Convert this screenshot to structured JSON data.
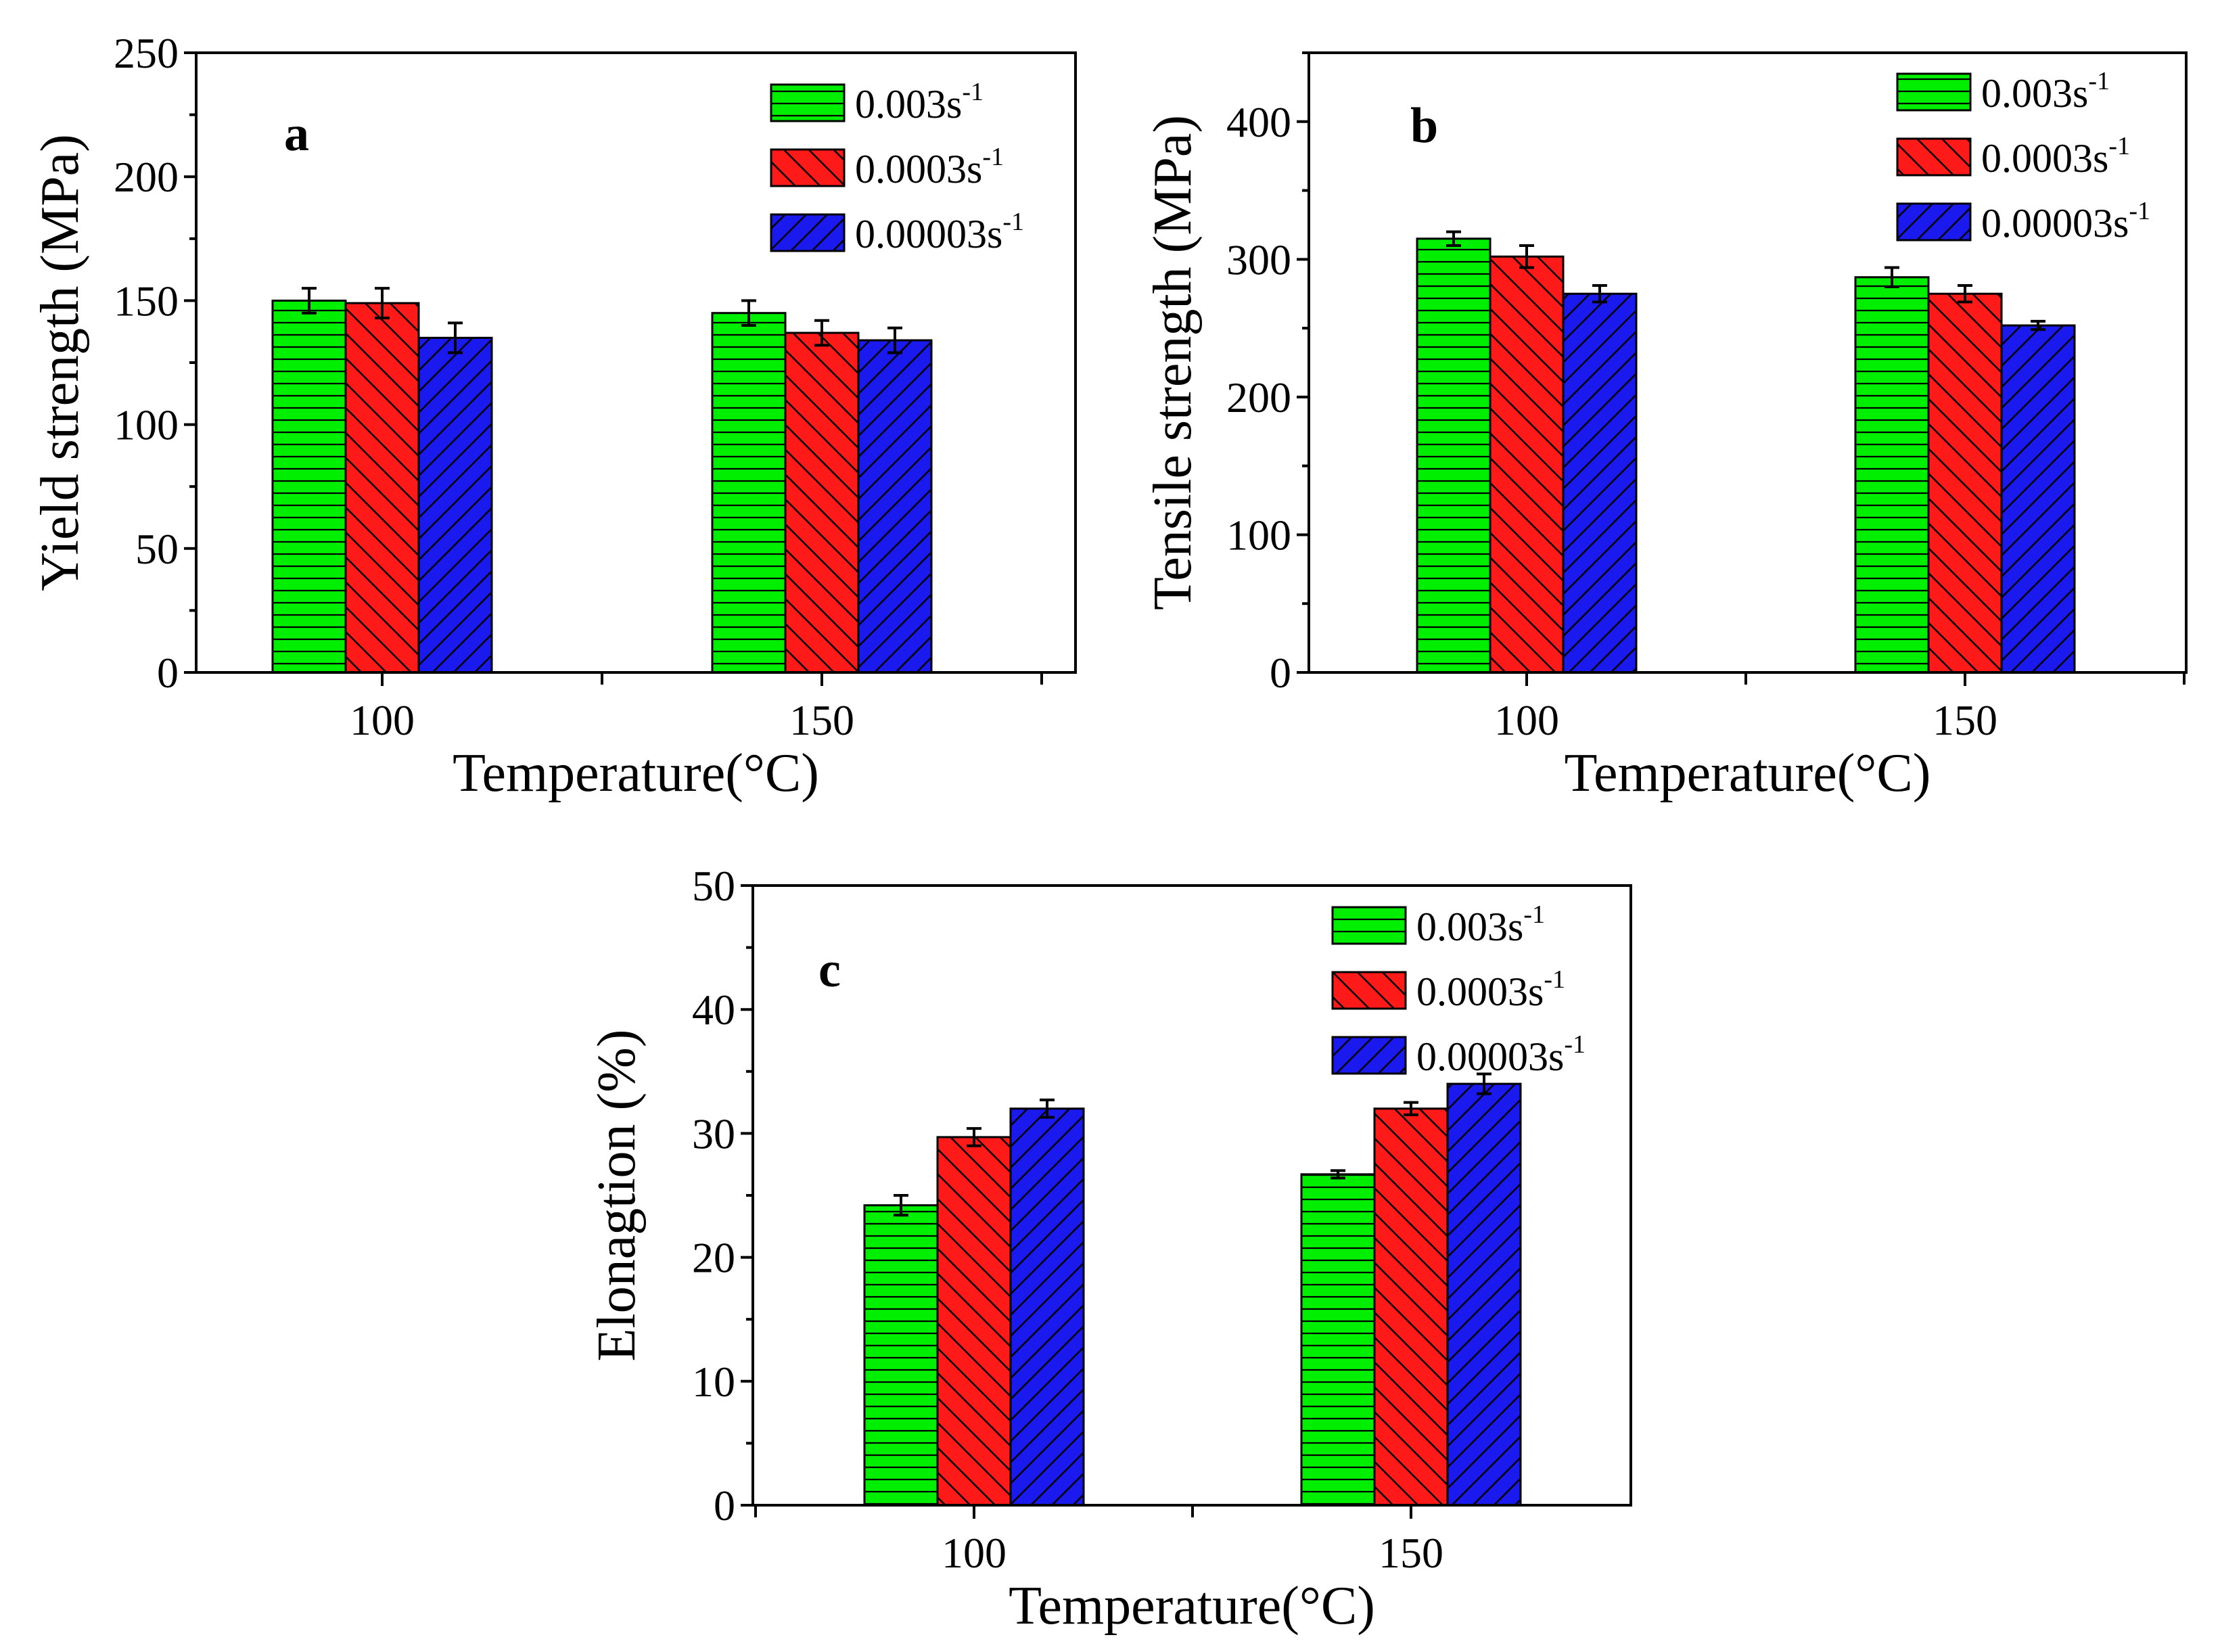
{
  "colors": {
    "series": [
      "#00ee00",
      "#ff1a1a",
      "#1a1aee"
    ],
    "hatch": "#000000",
    "axis": "#000000",
    "background": "#ffffff"
  },
  "chart_data": [
    {
      "type": "bar",
      "panel_label": "a",
      "xlabel": "Temperature(°C)",
      "ylabel": "Yield strength (MPa)",
      "categories": [
        "100",
        "150"
      ],
      "ylim": [
        0,
        250
      ],
      "yticks": [
        0,
        50,
        100,
        150,
        200,
        250
      ],
      "grid": false,
      "legend_position": "top-right",
      "series": [
        {
          "name": "0.003s",
          "exp": "-1",
          "pattern": "horizontal",
          "values": [
            150,
            145
          ],
          "errors": [
            5,
            5
          ]
        },
        {
          "name": "0.0003s",
          "exp": "-1",
          "pattern": "diagonal",
          "values": [
            149,
            137
          ],
          "errors": [
            6,
            5
          ]
        },
        {
          "name": "0.00003s",
          "exp": "-1",
          "pattern": "diagonal-dense",
          "values": [
            135,
            134
          ],
          "errors": [
            6,
            5
          ]
        }
      ]
    },
    {
      "type": "bar",
      "panel_label": "b",
      "xlabel": "Temperature(°C)",
      "ylabel": "Tensile strength (MPa)",
      "categories": [
        "100",
        "150"
      ],
      "ylim": [
        0,
        450
      ],
      "yticks": [
        0,
        100,
        200,
        300,
        400
      ],
      "grid": false,
      "legend_position": "top-right",
      "series": [
        {
          "name": "0.003s",
          "exp": "-1",
          "pattern": "horizontal",
          "values": [
            315,
            287
          ],
          "errors": [
            5,
            7
          ]
        },
        {
          "name": "0.0003s",
          "exp": "-1",
          "pattern": "diagonal",
          "values": [
            302,
            275
          ],
          "errors": [
            8,
            6
          ]
        },
        {
          "name": "0.00003s",
          "exp": "-1",
          "pattern": "diagonal-dense",
          "values": [
            275,
            252
          ],
          "errors": [
            6,
            3
          ]
        }
      ]
    },
    {
      "type": "bar",
      "panel_label": "c",
      "xlabel": "Temperature(°C)",
      "ylabel": "Elonagtion (%)",
      "categories": [
        "100",
        "150"
      ],
      "ylim": [
        0,
        50
      ],
      "yticks": [
        0,
        10,
        20,
        30,
        40,
        50
      ],
      "grid": false,
      "legend_position": "top-right",
      "series": [
        {
          "name": "0.003s",
          "exp": "-1",
          "pattern": "horizontal",
          "values": [
            24.2,
            26.7
          ],
          "errors": [
            0.8,
            0.3
          ]
        },
        {
          "name": "0.0003s",
          "exp": "-1",
          "pattern": "diagonal",
          "values": [
            29.7,
            32.0
          ],
          "errors": [
            0.7,
            0.5
          ]
        },
        {
          "name": "0.00003s",
          "exp": "-1",
          "pattern": "diagonal-dense",
          "values": [
            32.0,
            34.0
          ],
          "errors": [
            0.7,
            0.8
          ]
        }
      ]
    }
  ]
}
